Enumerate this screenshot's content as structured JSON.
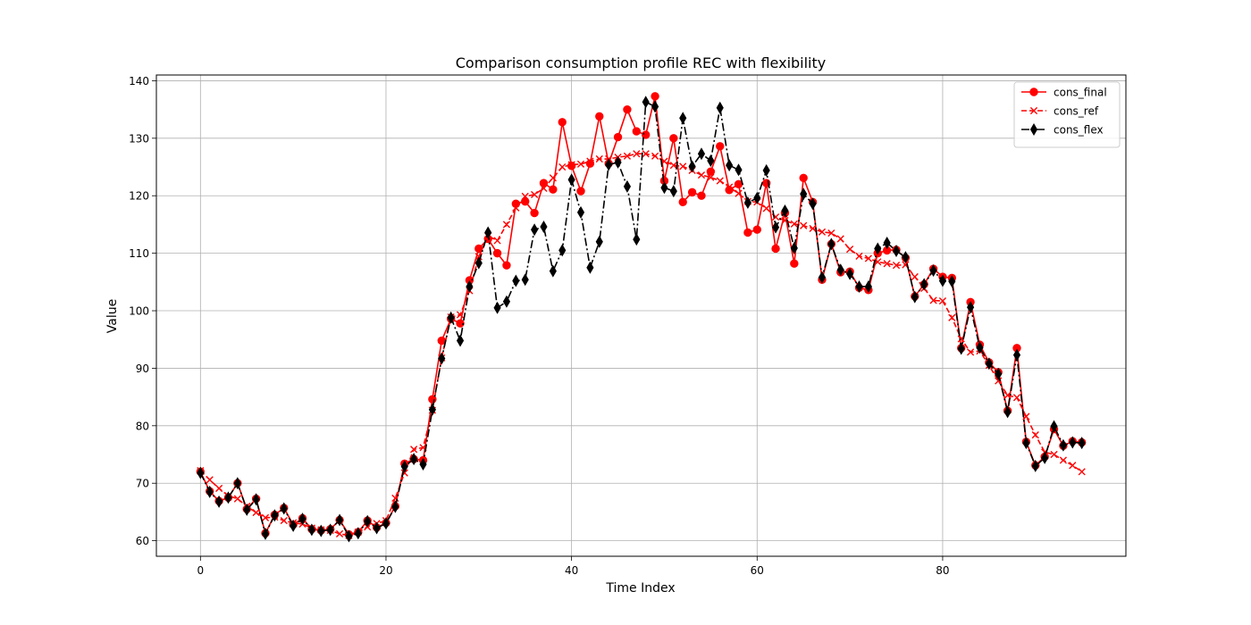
{
  "chart_data": {
    "type": "line",
    "title": "Comparison consumption profile REC with flexibility",
    "xlabel": "Time Index",
    "ylabel": "Value",
    "xlim": [
      -4.75,
      99.75
    ],
    "ylim": [
      57.3,
      141.0
    ],
    "xticks": [
      0,
      20,
      40,
      60,
      80
    ],
    "yticks": [
      60,
      70,
      80,
      90,
      100,
      110,
      120,
      130,
      140
    ],
    "grid": true,
    "legend_position": "upper right",
    "series": [
      {
        "name": "cons_final",
        "color": "#ff0000",
        "line_style": "solid",
        "marker": "circle",
        "values": [
          72,
          68.6,
          66.9,
          67.5,
          70,
          65.5,
          67.3,
          61.3,
          64.5,
          65.7,
          62.8,
          63.9,
          62,
          61.8,
          62,
          63.6,
          61.1,
          61.5,
          63.5,
          62.3,
          63.1,
          66,
          73.4,
          74.2,
          74,
          84.6,
          94.8,
          98.6,
          97.8,
          105.3,
          110.8,
          112.5,
          110,
          107.9,
          118.6,
          119,
          117,
          122.2,
          121.1,
          132.8,
          125.2,
          120.8,
          125.6,
          133.8,
          125.6,
          130.2,
          135,
          131.2,
          130.6,
          137.3,
          122.6,
          130,
          118.9,
          120.6,
          120,
          124.2,
          128.6,
          121,
          122,
          113.6,
          114.1,
          122.2,
          110.8,
          117,
          108.2,
          123.1,
          118.9,
          105.4,
          111.6,
          106.7,
          106.8,
          104,
          103.6,
          110,
          110.5,
          110.6,
          109.2,
          102.5,
          104.6,
          107.3,
          105.9,
          105.7,
          93.5,
          101.5,
          94.1,
          91,
          89.3,
          82.6,
          93.5,
          77.2,
          73.1,
          74.6,
          79.4,
          76.5,
          77.3,
          77.1
        ]
      },
      {
        "name": "cons_ref",
        "color": "#ff0000",
        "line_style": "dashed",
        "marker": "x",
        "values": [
          72.2,
          70.6,
          69.1,
          67.8,
          67.3,
          66,
          64.9,
          64,
          64.1,
          63.5,
          63.1,
          62.9,
          62.2,
          61.9,
          61.8,
          61.2,
          60.9,
          61.5,
          62.4,
          63,
          63.5,
          67.4,
          71.8,
          75.9,
          76.2,
          82.7,
          91.8,
          98.9,
          99.3,
          103.5,
          109.4,
          113,
          112.2,
          115,
          117.9,
          119.9,
          120.2,
          121.3,
          123.1,
          125,
          125.4,
          125.5,
          126,
          126.4,
          126.4,
          126.7,
          126.9,
          127.3,
          127.3,
          126.9,
          126,
          125.3,
          125.1,
          124.4,
          123.6,
          123.2,
          122.6,
          121.5,
          120.4,
          119,
          118.9,
          117.8,
          116.3,
          115.7,
          115.1,
          114.8,
          114.3,
          113.7,
          113.5,
          112.5,
          110.7,
          109.5,
          109.1,
          108.5,
          108.2,
          107.9,
          108,
          105.9,
          103.9,
          101.8,
          101.7,
          98.8,
          95.1,
          92.8,
          93,
          90.5,
          87.8,
          85.3,
          84.9,
          81.6,
          78.4,
          75.4,
          75,
          74,
          73.1,
          72
        ]
      },
      {
        "name": "cons_flex",
        "color": "#000000",
        "line_style": "dashdot",
        "marker": "thin_diamond",
        "values": [
          71.8,
          68.5,
          66.8,
          67.5,
          70,
          65.4,
          67.2,
          61.2,
          64.4,
          65.6,
          62.6,
          63.8,
          61.9,
          61.7,
          61.9,
          63.6,
          60.8,
          61.3,
          63.4,
          62.2,
          63,
          65.9,
          72.9,
          74.2,
          73.3,
          82.8,
          91.7,
          98.8,
          94.8,
          104.2,
          108.3,
          113.6,
          100.5,
          101.6,
          105.2,
          105.4,
          114.1,
          114.6,
          106.9,
          110.5,
          122.8,
          117.1,
          107.5,
          112,
          125.4,
          125.8,
          121.6,
          112.4,
          136.3,
          135.5,
          121.4,
          120.8,
          133.5,
          125.1,
          127.3,
          126.1,
          135.3,
          125.3,
          124.5,
          118.8,
          119.6,
          124.4,
          114.5,
          117.4,
          110.9,
          120.3,
          118.6,
          105.8,
          111.6,
          107.1,
          106.4,
          104.2,
          104.2,
          110.8,
          111.8,
          110.4,
          109.3,
          102.4,
          104.6,
          107,
          105.2,
          105.1,
          93.4,
          100.6,
          93.6,
          90.8,
          89,
          82.4,
          92.3,
          77,
          73,
          74.4,
          79.9,
          76.6,
          77.1,
          77
        ]
      }
    ]
  }
}
